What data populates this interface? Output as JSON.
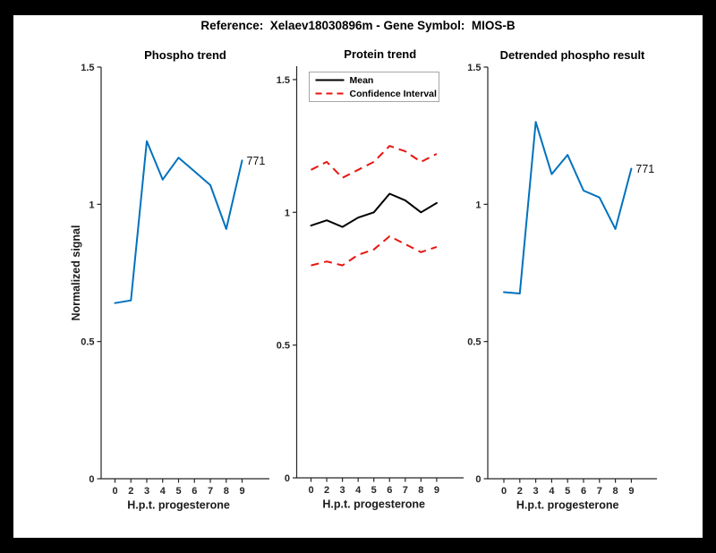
{
  "figure": {
    "title": "Reference:  Xelaev18030896m - Gene Symbol:  MIOS-B"
  },
  "colors": {
    "blue": "#0072BD",
    "red": "#e8150f",
    "black": "#000000",
    "axis": "#262626",
    "legend_border": "#a6a6a6",
    "background": "#ffffff",
    "frame": "#000000"
  },
  "chart_data": [
    {
      "type": "line",
      "title": "Phospho trend",
      "xlabel": "H.p.t. progesterone",
      "ylabel": "Normalized signal",
      "categories": [
        "0",
        "2",
        "3",
        "4",
        "5",
        "6",
        "7",
        "8",
        "9"
      ],
      "yticks": [
        0,
        0.5,
        1,
        1.5
      ],
      "ytick_labels": [
        "0",
        "0.5",
        "1",
        "1.5"
      ],
      "ylim": [
        0,
        1.5
      ],
      "grid": false,
      "end_label": "771",
      "series": [
        {
          "name": "Phospho signal",
          "color_key": "blue",
          "style": "solid",
          "values": [
            0.64,
            0.65,
            1.23,
            1.09,
            1.17,
            1.12,
            1.07,
            0.91,
            1.16
          ]
        }
      ],
      "legend": null
    },
    {
      "type": "line",
      "title": "Protein trend",
      "xlabel": "H.p.t. progesterone",
      "ylabel": "",
      "categories": [
        "0",
        "2",
        "3",
        "4",
        "5",
        "6",
        "7",
        "8",
        "9"
      ],
      "yticks": [
        0,
        0.5,
        1,
        1.5
      ],
      "ytick_labels": [
        "0",
        "0.5",
        "1",
        "1.5"
      ],
      "ylim": [
        0,
        1.55
      ],
      "grid": false,
      "end_label": null,
      "series": [
        {
          "name": "Mean",
          "color_key": "black",
          "style": "solid",
          "values": [
            0.95,
            0.97,
            0.945,
            0.98,
            1.0,
            1.07,
            1.045,
            1.0,
            1.035
          ]
        },
        {
          "name": "Confidence Interval upper",
          "color_key": "red",
          "style": "dashed",
          "values": [
            1.16,
            1.19,
            1.13,
            1.16,
            1.19,
            1.25,
            1.23,
            1.19,
            1.22
          ]
        },
        {
          "name": "Confidence Interval lower",
          "color_key": "red",
          "style": "dashed",
          "values": [
            0.8,
            0.815,
            0.8,
            0.84,
            0.86,
            0.91,
            0.88,
            0.85,
            0.87
          ]
        }
      ],
      "legend": {
        "position": "upper-left",
        "entries": [
          {
            "label": "Mean",
            "color_key": "black",
            "style": "solid"
          },
          {
            "label": "Confidence Interval",
            "color_key": "red",
            "style": "dashed"
          }
        ]
      }
    },
    {
      "type": "line",
      "title": "Detrended phospho result",
      "xlabel": "H.p.t. progesterone",
      "ylabel": "",
      "categories": [
        "0",
        "2",
        "3",
        "4",
        "5",
        "6",
        "7",
        "8",
        "9"
      ],
      "yticks": [
        0,
        0.5,
        1,
        1.5
      ],
      "ytick_labels": [
        "0",
        "0.5",
        "1",
        "1.5"
      ],
      "ylim": [
        0,
        1.5
      ],
      "grid": false,
      "end_label": "771",
      "series": [
        {
          "name": "Detrended phospho signal",
          "color_key": "blue",
          "style": "solid",
          "values": [
            0.68,
            0.675,
            1.3,
            1.11,
            1.18,
            1.05,
            1.025,
            0.91,
            1.13
          ]
        }
      ],
      "legend": null
    }
  ]
}
